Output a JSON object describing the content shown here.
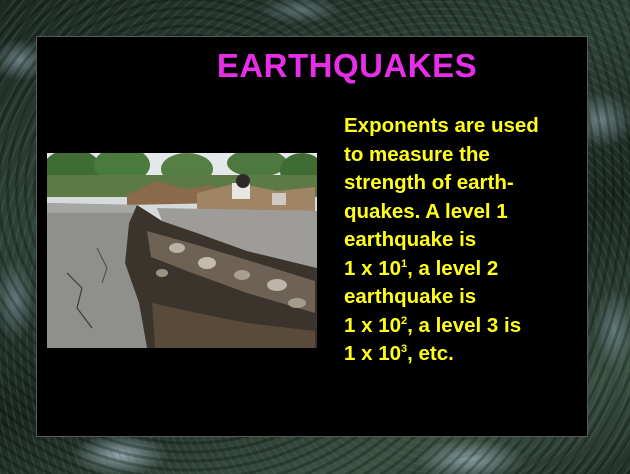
{
  "slide": {
    "title": "EARTHQUAKES",
    "lines": [
      "Exponents are used",
      "to measure the",
      "strength of earth-",
      "quakes.  A level 1",
      "earthquake is"
    ],
    "line6": {
      "base": "1 x 10",
      "exp": "1",
      "rest": ", a level 2"
    },
    "line7": "earthquake is",
    "line8": {
      "base": "1 x 10",
      "exp": "2",
      "rest": ", a level 3 is"
    },
    "line9": {
      "base": "1 x 10",
      "exp": "3",
      "rest": ", etc."
    }
  },
  "colors": {
    "title": "#e62ee6",
    "body": "#ffff1a",
    "slide_background": "#000000"
  }
}
